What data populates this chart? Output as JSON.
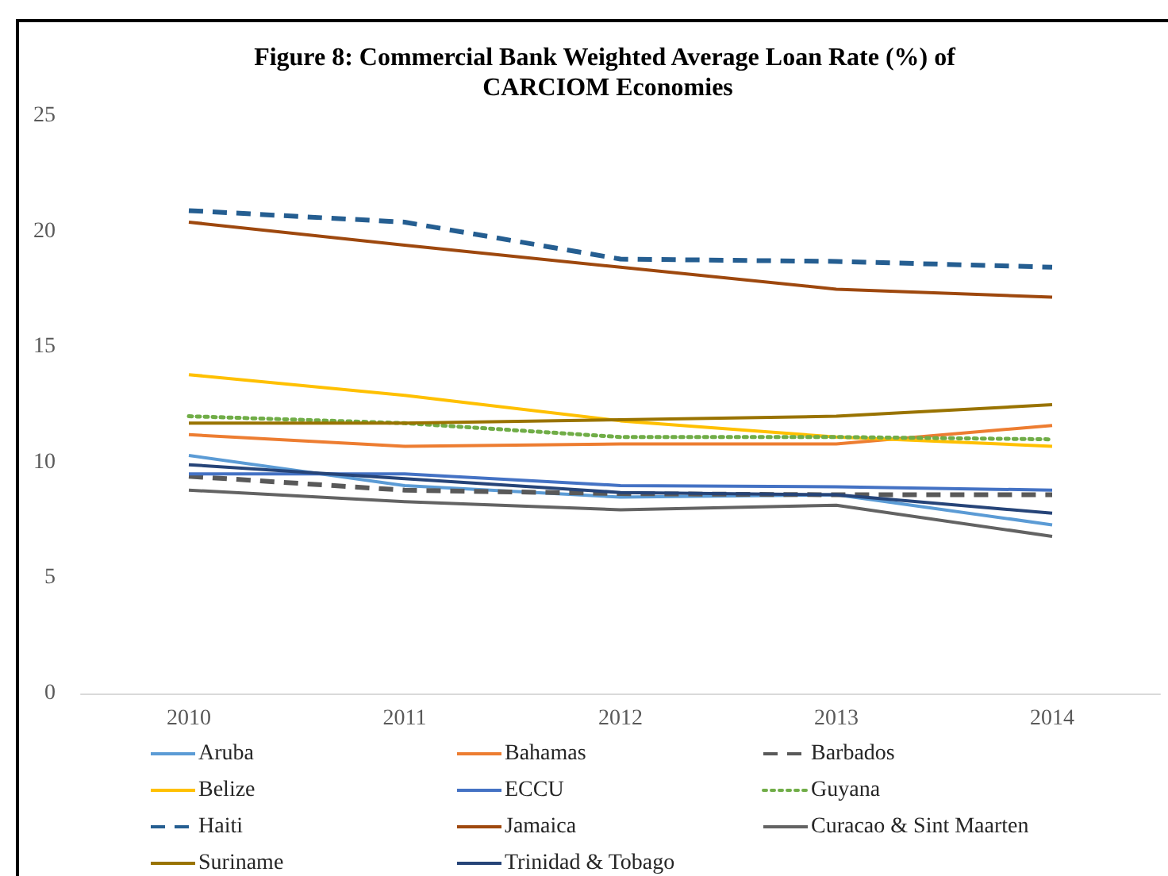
{
  "chart_data": {
    "type": "line",
    "title": "Figure 8: Commercial Bank Weighted Average Loan Rate (%) of CARCIOM Economies",
    "categories": [
      "2010",
      "2011",
      "2012",
      "2013",
      "2014"
    ],
    "series": [
      {
        "name": "Aruba",
        "color": "#5b9bd5",
        "values": [
          10.3,
          9.0,
          8.5,
          8.6,
          7.3
        ]
      },
      {
        "name": "Bahamas",
        "color": "#ed7d31",
        "values": [
          11.2,
          10.7,
          10.8,
          10.8,
          11.6
        ]
      },
      {
        "name": "Barbados",
        "color": "#595959",
        "line_style": "dashed",
        "values": [
          9.4,
          8.8,
          8.65,
          8.6,
          8.6
        ]
      },
      {
        "name": "Belize",
        "color": "#ffc000",
        "values": [
          13.8,
          12.9,
          11.8,
          11.1,
          10.7
        ]
      },
      {
        "name": "ECCU",
        "color": "#4472c4",
        "values": [
          9.5,
          9.5,
          9.0,
          8.95,
          8.8
        ]
      },
      {
        "name": "Guyana",
        "color": "#70ad47",
        "line_style": "dotted",
        "values": [
          12.0,
          11.7,
          11.1,
          11.1,
          11.0
        ]
      },
      {
        "name": "Haiti",
        "color": "#255e91",
        "line_style": "dashed",
        "values": [
          20.9,
          20.4,
          18.8,
          18.7,
          18.45
        ]
      },
      {
        "name": "Jamaica",
        "color": "#9e480e",
        "values": [
          20.4,
          19.4,
          18.45,
          17.5,
          17.15
        ]
      },
      {
        "name": "Curacao & Sint Maarten",
        "color": "#636363",
        "values": [
          8.8,
          8.3,
          7.95,
          8.15,
          6.8
        ]
      },
      {
        "name": "Suriname",
        "color": "#997300",
        "values": [
          11.7,
          11.7,
          11.85,
          12.0,
          12.5
        ]
      },
      {
        "name": "Trinidad & Tobago",
        "color": "#264478",
        "values": [
          9.9,
          9.3,
          8.7,
          8.6,
          7.8
        ]
      }
    ],
    "ylim": [
      0,
      25
    ],
    "yticks": [
      0,
      5,
      10,
      15,
      20,
      25
    ],
    "grid": false,
    "legend": "bottom",
    "marker": "none",
    "line_style": "solid"
  }
}
